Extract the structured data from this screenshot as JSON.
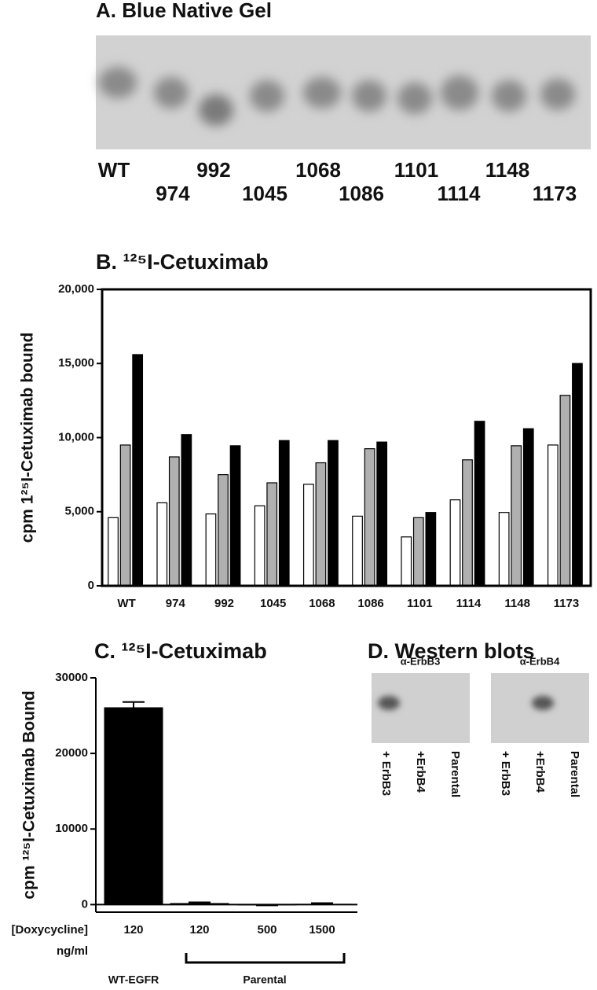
{
  "gel": {
    "title": "A.  Blue Native Gel",
    "lanes": [
      "WT",
      "974",
      "992",
      "1045",
      "1068",
      "1086",
      "1101",
      "1114",
      "1148",
      "1173"
    ]
  },
  "chart_data": [
    {
      "type": "bar",
      "title": "B.  ¹²⁵I-Cetuximab",
      "ylabel": "cpm 1²⁵I-Cetuximab bound",
      "categories": [
        "WT",
        "974",
        "992",
        "1045",
        "1068",
        "1086",
        "1101",
        "1114",
        "1148",
        "1173"
      ],
      "series": [
        {
          "color": "#ffffff",
          "values": [
            4600,
            5600,
            4850,
            5400,
            6850,
            4700,
            3300,
            5800,
            4950,
            9500
          ]
        },
        {
          "color": "#b0b0b0",
          "values": [
            9500,
            8700,
            7500,
            6950,
            8300,
            9250,
            4600,
            8500,
            9450,
            12850
          ]
        },
        {
          "color": "#000000",
          "values": [
            15600,
            10200,
            9450,
            9800,
            9800,
            9700,
            4950,
            11100,
            10600,
            15000
          ]
        }
      ],
      "ylim": [
        0,
        20000
      ],
      "yticks": [
        0,
        {
          "value": 5000,
          "label": "5,000"
        },
        {
          "value": 10000,
          "label": "10,000"
        },
        {
          "value": 15000,
          "label": "15,000"
        },
        {
          "value": 20000,
          "label": "20,000"
        }
      ]
    },
    {
      "type": "bar",
      "title": "C.  ¹²⁵I-Cetuximab",
      "ylabel": "cpm ¹²⁵I-Cetuximab Bound",
      "categories": [
        "120",
        "120",
        "500",
        "1500"
      ],
      "values": [
        26100,
        200,
        -100,
        100
      ],
      "errors": [
        700,
        100,
        0,
        100
      ],
      "color": "#000000",
      "ylim": [
        -1000,
        30000
      ],
      "yticks": [
        0,
        10000,
        20000,
        30000
      ],
      "xlabel": [
        "[Doxycycline]",
        "ng/ml"
      ],
      "groups": [
        "WT-EGFR",
        "Parental"
      ]
    }
  ],
  "western": {
    "title": "D.  Western blots",
    "blots": [
      {
        "antibody": "α-ErbB3",
        "lanes": [
          "+ ErbB3",
          "+ErbB4",
          "Parental"
        ]
      },
      {
        "antibody": "α-ErbB4",
        "lanes": [
          "+ ErbB3",
          "+ErbB4",
          "Parental"
        ]
      }
    ]
  }
}
